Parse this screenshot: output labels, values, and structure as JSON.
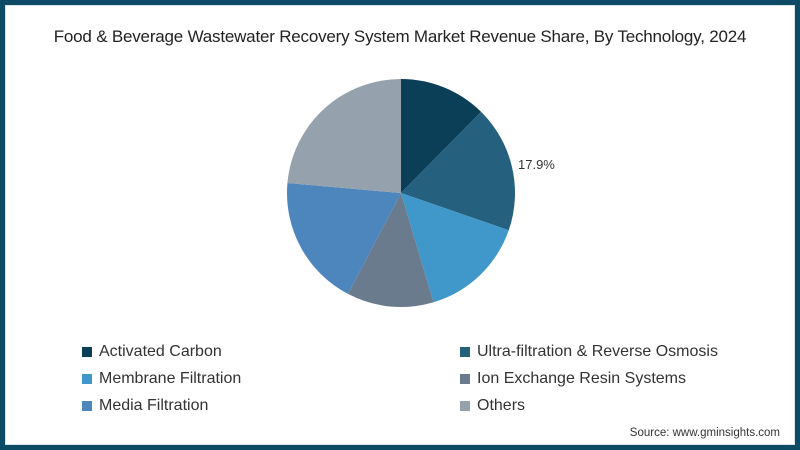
{
  "chart_data": {
    "type": "pie",
    "title": "Food & Beverage Wastewater Recovery System Market Revenue Share, By Technology, 2024",
    "categories": [
      "Activated Carbon",
      "Ultra-filtration & Reverse Osmosis",
      "Membrane Filtration",
      "Ion Exchange Resin Systems",
      "Media Filtration",
      "Others"
    ],
    "values": [
      12.4,
      17.9,
      15.1,
      12.3,
      18.7,
      23.6
    ],
    "colors": [
      "#0b3f58",
      "#25617f",
      "#3f98c9",
      "#6b7b8e",
      "#4d86bd",
      "#95a1ad"
    ],
    "annotations": [
      {
        "category": "Ultra-filtration & Reverse Osmosis",
        "text": "17.9%"
      }
    ],
    "legend_position": "bottom",
    "start_angle_deg": 0,
    "direction": "clockwise"
  },
  "title": "Food & Beverage Wastewater Recovery System Market Revenue Share, By Technology, 2024",
  "label_text": "17.9%",
  "legend": [
    {
      "label": "Activated Carbon",
      "color": "#0b3f58"
    },
    {
      "label": "Ultra-filtration & Reverse Osmosis",
      "color": "#25617f"
    },
    {
      "label": "Membrane Filtration",
      "color": "#3f98c9"
    },
    {
      "label": "Ion Exchange Resin Systems",
      "color": "#6b7b8e"
    },
    {
      "label": "Media Filtration",
      "color": "#4d86bd"
    },
    {
      "label": "Others",
      "color": "#95a1ad"
    }
  ],
  "source": "Source: www.gminsights.com"
}
